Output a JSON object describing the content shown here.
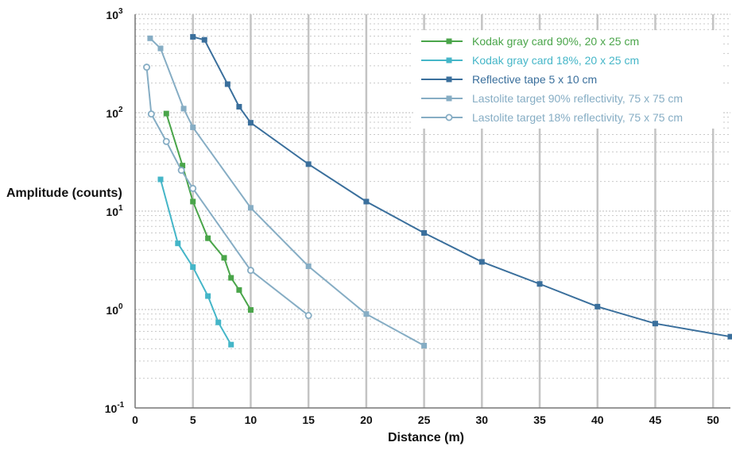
{
  "chart_data": {
    "type": "line",
    "xlabel": "Distance (m)",
    "ylabel": "Amplitude (counts)",
    "xlim": [
      0,
      51.5
    ],
    "ylim": [
      0.1,
      1000
    ],
    "yscale": "log",
    "grid": true,
    "legend_position": "top-right",
    "x_ticks": [
      "0",
      "5",
      "10",
      "15",
      "20",
      "25",
      "30",
      "35",
      "40",
      "45",
      "50"
    ],
    "x_tick_values": [
      0,
      5,
      10,
      15,
      20,
      25,
      30,
      35,
      40,
      45,
      50
    ],
    "y_ticks": [
      {
        "base": "10",
        "exp": "-1",
        "value": 0.1
      },
      {
        "base": "10",
        "exp": "0",
        "value": 1
      },
      {
        "base": "10",
        "exp": "1",
        "value": 10
      },
      {
        "base": "10",
        "exp": "2",
        "value": 100
      },
      {
        "base": "10",
        "exp": "3",
        "value": 1000
      }
    ],
    "series": [
      {
        "name": "Kodak gray card 90%, 20 x 25 cm",
        "color": "#4aa54a",
        "marker": "square",
        "points": [
          [
            2.7,
            98
          ],
          [
            4.1,
            29
          ],
          [
            5.0,
            12.5
          ],
          [
            6.3,
            5.3
          ],
          [
            7.7,
            3.35
          ],
          [
            8.3,
            2.1
          ],
          [
            9.0,
            1.58
          ],
          [
            10.0,
            0.99
          ]
        ]
      },
      {
        "name": "Kodak gray card 18%, 20 x 25 cm",
        "color": "#45b6c8",
        "marker": "square",
        "points": [
          [
            2.2,
            21
          ],
          [
            3.7,
            4.7
          ],
          [
            5.0,
            2.7
          ],
          [
            6.3,
            1.37
          ],
          [
            7.2,
            0.74
          ],
          [
            8.3,
            0.44
          ]
        ]
      },
      {
        "name": "Reflective tape 5 x 10 cm",
        "color": "#3a6f9c",
        "marker": "square",
        "points": [
          [
            5.0,
            590
          ],
          [
            6.0,
            550
          ],
          [
            8.0,
            195
          ],
          [
            9.0,
            115
          ],
          [
            10.0,
            79
          ],
          [
            15.0,
            30
          ],
          [
            20.0,
            12.5
          ],
          [
            25.0,
            6.0
          ],
          [
            30.0,
            3.05
          ],
          [
            35.0,
            1.82
          ],
          [
            40.0,
            1.07
          ],
          [
            45.0,
            0.72
          ],
          [
            51.5,
            0.53
          ]
        ]
      },
      {
        "name": "Lastolite target 90% reflectivity, 75 x 75 cm",
        "color": "#86adc4",
        "marker": "square",
        "points": [
          [
            1.3,
            570
          ],
          [
            2.2,
            450
          ],
          [
            4.2,
            110
          ],
          [
            5.0,
            71
          ],
          [
            10.0,
            10.8
          ],
          [
            15.0,
            2.75
          ],
          [
            20.0,
            0.9
          ],
          [
            25.0,
            0.43
          ]
        ]
      },
      {
        "name": "Lastolite target 18% reflectivity, 75 x 75 cm",
        "color": "#86adc4",
        "marker": "circle-open",
        "points": [
          [
            1.0,
            290
          ],
          [
            1.4,
            97
          ],
          [
            2.7,
            51
          ],
          [
            4.0,
            26
          ],
          [
            5.0,
            17
          ],
          [
            10.0,
            2.5
          ],
          [
            15.0,
            0.87
          ]
        ]
      }
    ]
  }
}
